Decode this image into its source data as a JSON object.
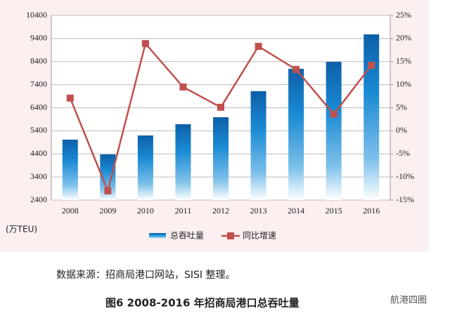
{
  "chart_data": {
    "type": "bar",
    "y_label": "(万TEU)",
    "categories": [
      "2008",
      "2009",
      "2010",
      "2011",
      "2012",
      "2013",
      "2014",
      "2015",
      "2016"
    ],
    "series": [
      {
        "name": "总吞吐量",
        "type": "bar",
        "color": "#1a8ad4",
        "values": [
          5020,
          4380,
          5200,
          5690,
          5990,
          7120,
          8090,
          8390,
          9580
        ]
      },
      {
        "name": "同比增速",
        "type": "line",
        "axis": "y2",
        "color": "#c0504d",
        "values": [
          7.1,
          -13,
          18.9,
          9.5,
          5.1,
          18.3,
          13.3,
          3.6,
          14.2
        ]
      }
    ],
    "ylim": [
      2400,
      10400
    ],
    "yticks": [
      2400,
      3400,
      4400,
      5400,
      6400,
      7400,
      8400,
      9400,
      10400
    ],
    "y2lim": [
      -15,
      25
    ],
    "y2ticks": [
      {
        "value": -15,
        "label": "-15%"
      },
      {
        "value": -10,
        "label": "-10%"
      },
      {
        "value": -5,
        "label": "-5%"
      },
      {
        "value": 0,
        "label": "0%"
      },
      {
        "value": 5,
        "label": "5%"
      },
      {
        "value": 10,
        "label": "10%"
      },
      {
        "value": 15,
        "label": "15%"
      },
      {
        "value": 20,
        "label": "20%"
      },
      {
        "value": 25,
        "label": "25%"
      }
    ],
    "grid": true,
    "source": "数据来源：招商局港口网站，SISI 整理。",
    "caption": "图6   2008-2016 年招商局港口总吞吐量",
    "watermark": "航港四圈"
  }
}
